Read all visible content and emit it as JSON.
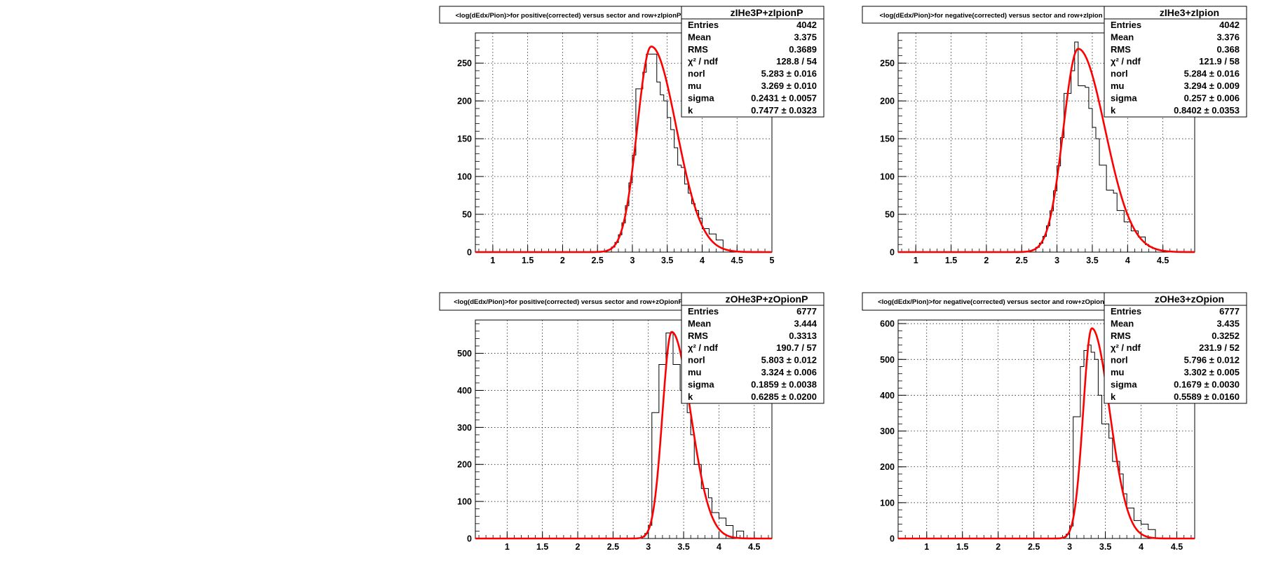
{
  "colors": {
    "hist": "#000000",
    "fit": "#ff0000",
    "grid": "#000000",
    "background": "#ffffff"
  },
  "chart_data": [
    {
      "type": "histogram",
      "title": "<log(dEdx/Pion)>for positive(corrected) versus sector and row+zIpionP",
      "stats_title": "zIHe3P+zIpionP",
      "stats": [
        {
          "label": "Entries",
          "value": "4042"
        },
        {
          "label": "Mean",
          "value": "3.375"
        },
        {
          "label": "RMS",
          "value": "0.3689"
        },
        {
          "label": "χ² / ndf",
          "value": "128.8 / 54"
        },
        {
          "label": "norl",
          "value": "5.283 ± 0.016"
        },
        {
          "label": "mu",
          "value": "3.269 ± 0.010"
        },
        {
          "label": "sigma",
          "value": "0.2431 ± 0.0057"
        },
        {
          "label": "k",
          "value": "0.7477 ± 0.0323"
        }
      ],
      "xlim": [
        0.75,
        5.0
      ],
      "ylim": [
        0,
        290
      ],
      "xticks": [
        "1",
        "1.5",
        "2",
        "2.5",
        "3",
        "3.5",
        "4",
        "4.5",
        "5"
      ],
      "yticks": [
        "0",
        "50",
        "100",
        "150",
        "200",
        "250"
      ],
      "fit": {
        "peak_x": 3.27,
        "peak_y": 272,
        "sigma_left": 0.2,
        "sigma_right": 0.36
      },
      "hist_points": [
        [
          3.1,
          216
        ],
        [
          3.15,
          238
        ],
        [
          3.2,
          262
        ],
        [
          3.3,
          262
        ],
        [
          3.35,
          225
        ],
        [
          3.4,
          208
        ],
        [
          3.45,
          200
        ],
        [
          3.5,
          178
        ],
        [
          3.55,
          162
        ],
        [
          3.6,
          138
        ],
        [
          3.65,
          115
        ],
        [
          3.7,
          112
        ],
        [
          3.75,
          90
        ],
        [
          3.8,
          78
        ],
        [
          3.85,
          64
        ],
        [
          3.9,
          55
        ],
        [
          3.95,
          45
        ],
        [
          4.05,
          31
        ],
        [
          4.15,
          24
        ],
        [
          4.25,
          16
        ]
      ]
    },
    {
      "type": "histogram",
      "title": "<log(dEdx/Pion)>for negative(corrected) versus sector and row+zIpion",
      "stats_title": "zIHe3+zIpion",
      "stats": [
        {
          "label": "Entries",
          "value": "4042"
        },
        {
          "label": "Mean",
          "value": "3.376"
        },
        {
          "label": "RMS",
          "value": "0.368"
        },
        {
          "label": "χ² / ndf",
          "value": "121.9 / 58"
        },
        {
          "label": "norl",
          "value": "5.284 ± 0.016"
        },
        {
          "label": "mu",
          "value": "3.294 ± 0.009"
        },
        {
          "label": "sigma",
          "value": "0.257 ± 0.006"
        },
        {
          "label": "k",
          "value": "0.8402 ± 0.0353"
        }
      ],
      "xlim": [
        0.75,
        4.95
      ],
      "ylim": [
        0,
        290
      ],
      "xticks": [
        "1",
        "1.5",
        "2",
        "2.5",
        "3",
        "3.5",
        "4",
        "4.5"
      ],
      "yticks": [
        "0",
        "50",
        "100",
        "150",
        "200",
        "250"
      ],
      "fit": {
        "peak_x": 3.3,
        "peak_y": 269,
        "sigma_left": 0.21,
        "sigma_right": 0.38
      },
      "hist_points": [
        [
          3.15,
          210
        ],
        [
          3.2,
          240
        ],
        [
          3.25,
          278
        ],
        [
          3.35,
          220
        ],
        [
          3.4,
          218
        ],
        [
          3.45,
          190
        ],
        [
          3.5,
          165
        ],
        [
          3.55,
          150
        ],
        [
          3.65,
          115
        ],
        [
          3.75,
          82
        ],
        [
          3.8,
          78
        ],
        [
          3.9,
          55
        ],
        [
          4.0,
          40
        ],
        [
          4.1,
          28
        ],
        [
          4.2,
          20
        ]
      ]
    },
    {
      "type": "histogram",
      "title": "<log(dEdx/Pion)>for positive(corrected) versus sector and row+zOpionP",
      "stats_title": "zOHe3P+zOpionP",
      "stats": [
        {
          "label": "Entries",
          "value": "6777"
        },
        {
          "label": "Mean",
          "value": "3.444"
        },
        {
          "label": "RMS",
          "value": "0.3313"
        },
        {
          "label": "χ² / ndf",
          "value": "190.7 / 57"
        },
        {
          "label": "norl",
          "value": "5.803 ± 0.012"
        },
        {
          "label": "mu",
          "value": "3.324 ± 0.006"
        },
        {
          "label": "sigma",
          "value": "0.1859 ± 0.0038"
        },
        {
          "label": "k",
          "value": "0.6285 ± 0.0200"
        }
      ],
      "xlim": [
        0.55,
        4.75
      ],
      "ylim": [
        0,
        590
      ],
      "xticks": [
        "1",
        "1.5",
        "2",
        "2.5",
        "3",
        "3.5",
        "4",
        "4.5"
      ],
      "yticks": [
        "0",
        "100",
        "200",
        "300",
        "400",
        "500"
      ],
      "fit": {
        "peak_x": 3.33,
        "peak_y": 558,
        "sigma_left": 0.13,
        "sigma_right": 0.27
      },
      "hist_points": [
        [
          3.1,
          340
        ],
        [
          3.2,
          470
        ],
        [
          3.3,
          555
        ],
        [
          3.4,
          470
        ],
        [
          3.5,
          400
        ],
        [
          3.55,
          340
        ],
        [
          3.6,
          280
        ],
        [
          3.7,
          200
        ],
        [
          3.8,
          135
        ],
        [
          3.85,
          110
        ],
        [
          3.95,
          70
        ],
        [
          4.05,
          55
        ],
        [
          4.15,
          35
        ],
        [
          4.3,
          20
        ]
      ]
    },
    {
      "type": "histogram",
      "title": "<log(dEdx/Pion)>for negative(corrected) versus sector and row+zOpion",
      "stats_title": "zOHe3+zOpion",
      "stats": [
        {
          "label": "Entries",
          "value": "6777"
        },
        {
          "label": "Mean",
          "value": "3.435"
        },
        {
          "label": "RMS",
          "value": "0.3252"
        },
        {
          "label": "χ² / ndf",
          "value": "231.9 / 52"
        },
        {
          "label": "norl",
          "value": "5.796 ± 0.012"
        },
        {
          "label": "mu",
          "value": "3.302 ± 0.005"
        },
        {
          "label": "sigma",
          "value": "0.1679 ± 0.0030"
        },
        {
          "label": "k",
          "value": "0.5589 ± 0.0160"
        }
      ],
      "xlim": [
        0.6,
        4.75
      ],
      "ylim": [
        0,
        610
      ],
      "xticks": [
        "1",
        "1.5",
        "2",
        "2.5",
        "3",
        "3.5",
        "4",
        "4.5"
      ],
      "yticks": [
        "0",
        "100",
        "200",
        "300",
        "400",
        "500",
        "600"
      ],
      "fit": {
        "peak_x": 3.31,
        "peak_y": 587,
        "sigma_left": 0.12,
        "sigma_right": 0.25
      },
      "hist_points": [
        [
          3.1,
          340
        ],
        [
          3.15,
          480
        ],
        [
          3.2,
          525
        ],
        [
          3.25,
          540
        ],
        [
          3.3,
          520
        ],
        [
          3.35,
          500
        ],
        [
          3.4,
          400
        ],
        [
          3.5,
          320
        ],
        [
          3.55,
          280
        ],
        [
          3.65,
          215
        ],
        [
          3.7,
          180
        ],
        [
          3.75,
          125
        ],
        [
          3.85,
          85
        ],
        [
          3.95,
          50
        ],
        [
          4.05,
          40
        ],
        [
          4.15,
          25
        ]
      ]
    }
  ]
}
